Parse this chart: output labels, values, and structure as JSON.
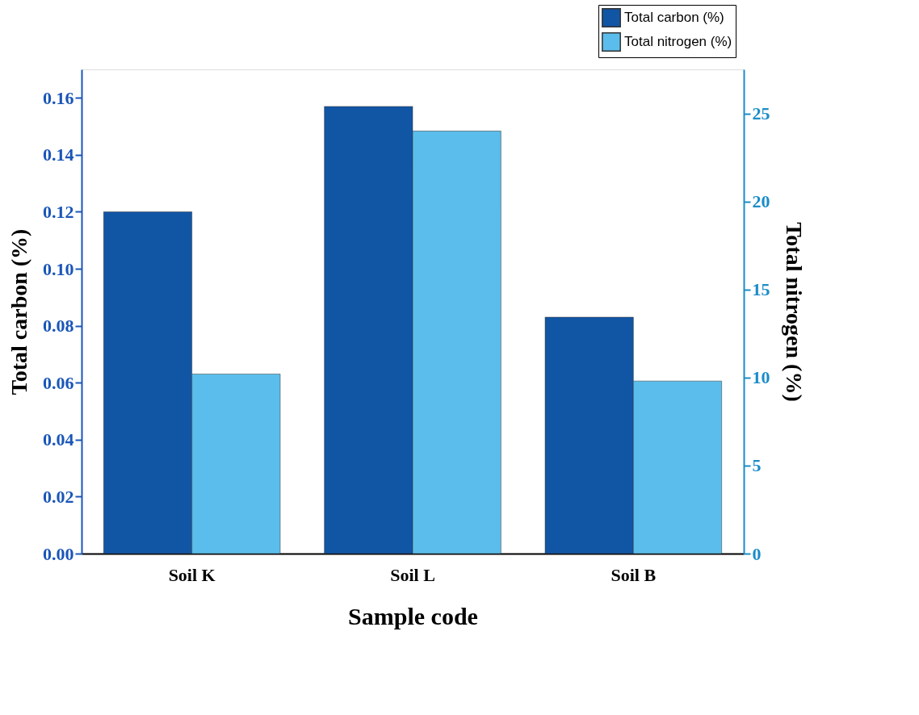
{
  "chart_data": {
    "type": "bar",
    "xlabel": "Sample code",
    "ylabel": "Total carbon (%)",
    "y2label": "Total nitrogen (%)",
    "categories": [
      "Soil K",
      "Soil L",
      "Soil B"
    ],
    "series": [
      {
        "name": "Total carbon (%)",
        "color": "#1155a5",
        "values": [
          0.12,
          0.157,
          0.083
        ]
      },
      {
        "name": "Total nitrogen (%)",
        "color": "#5bbdeb",
        "values": [
          10.2,
          24.0,
          9.8
        ],
        "axis": "y2"
      }
    ],
    "ylim": [
      0,
      0.17
    ],
    "yticks": [
      {
        "value": 0,
        "label": "0.00"
      },
      {
        "value": 0.02,
        "label": "0.02"
      },
      {
        "value": 0.04,
        "label": "0.04"
      },
      {
        "value": 0.06,
        "label": "0.06"
      },
      {
        "value": 0.08,
        "label": "0.08"
      },
      {
        "value": 0.1,
        "label": "0.10"
      },
      {
        "value": 0.12,
        "label": "0.12"
      },
      {
        "value": 0.14,
        "label": "0.14"
      },
      {
        "value": 0.16,
        "label": "0.16"
      }
    ],
    "y2lim": [
      0,
      27.5
    ],
    "y2ticks": [
      0,
      5,
      10,
      15,
      20,
      25
    ],
    "grid": false,
    "legend": "top right"
  }
}
